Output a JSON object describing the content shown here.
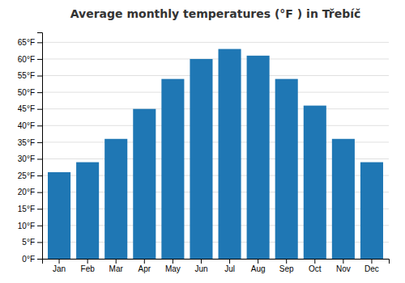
{
  "chart_data": {
    "type": "bar",
    "title": "Average monthly temperatures (°F ) in Třebíč",
    "categories": [
      "Jan",
      "Feb",
      "Mar",
      "Apr",
      "May",
      "Jun",
      "Jul",
      "Aug",
      "Sep",
      "Oct",
      "Nov",
      "Dec"
    ],
    "values": [
      26,
      29,
      36,
      45,
      54,
      60,
      63,
      61,
      54,
      46,
      36,
      29
    ],
    "ylim": [
      0,
      68
    ],
    "yticks": [
      {
        "value": 0,
        "label": "0°F"
      },
      {
        "value": 5,
        "label": "5°F"
      },
      {
        "value": 10,
        "label": "10°F"
      },
      {
        "value": 15,
        "label": "15°F"
      },
      {
        "value": 20,
        "label": "20°F"
      },
      {
        "value": 25,
        "label": "25°F"
      },
      {
        "value": 30,
        "label": "30°F"
      },
      {
        "value": 35,
        "label": "35°F"
      },
      {
        "value": 40,
        "label": "40°F"
      },
      {
        "value": 45,
        "label": "45°F"
      },
      {
        "value": 50,
        "label": "50°F"
      },
      {
        "value": 55,
        "label": "55°F"
      },
      {
        "value": 60,
        "label": "60°F"
      },
      {
        "value": 65,
        "label": "65°F"
      }
    ],
    "grid": true
  }
}
